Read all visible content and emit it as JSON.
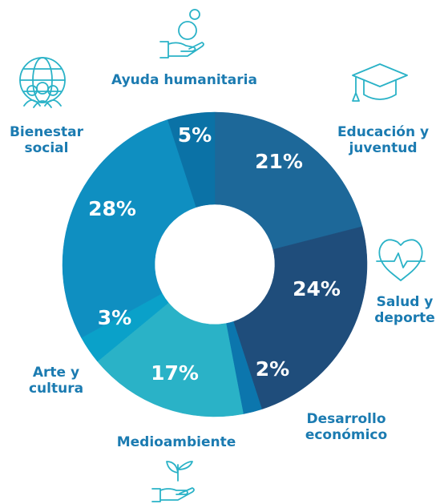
{
  "chart_data": {
    "type": "pie",
    "categories": [
      "Educación y juventud",
      "Salud y deporte",
      "Desarrollo económico",
      "Medioambiente",
      "Arte y cultura",
      "Bienestar social",
      "Ayuda humanitaria"
    ],
    "values": [
      21,
      24,
      2,
      17,
      3,
      28,
      5
    ],
    "value_labels": [
      "21%",
      "24%",
      "2%",
      "17%",
      "3%",
      "28%",
      "5%"
    ],
    "colors": [
      "#1d6899",
      "#1f4d7b",
      "#0c76ad",
      "#2ab2c7",
      "#0aa1c9",
      "#0f8fc1",
      "#0b72a6"
    ],
    "donut": true
  }
}
